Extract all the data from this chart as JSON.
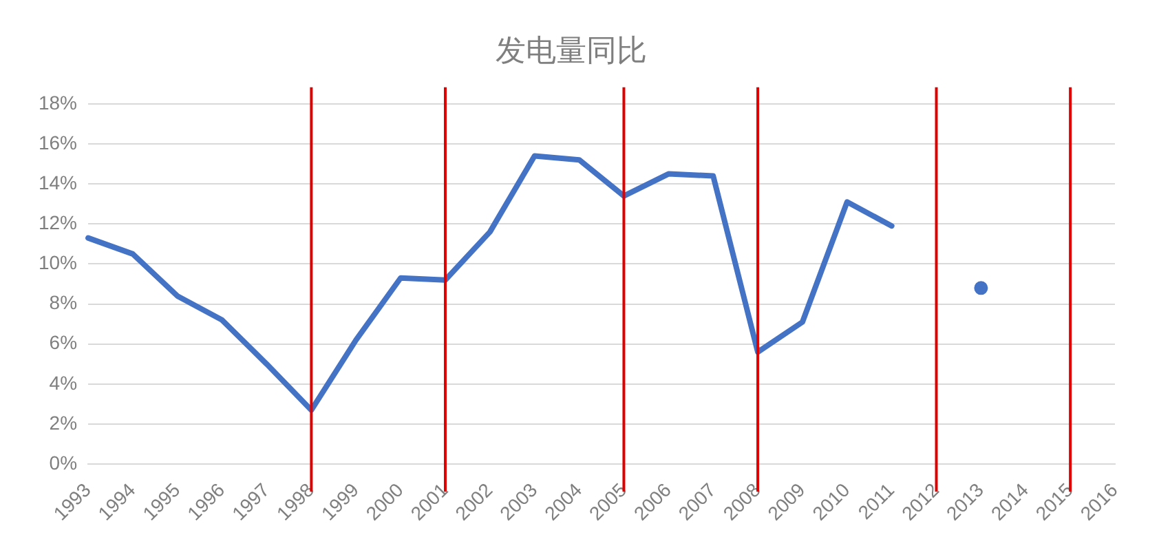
{
  "chart_data": {
    "type": "line",
    "title": "发电量同比",
    "categories": [
      "1993",
      "1994",
      "1995",
      "1996",
      "1997",
      "1998",
      "1999",
      "2000",
      "2001",
      "2002",
      "2003",
      "2004",
      "2005",
      "2006",
      "2007",
      "2008",
      "2009",
      "2010",
      "2011",
      "2012",
      "2013",
      "2014",
      "2015",
      "2016"
    ],
    "series": [
      {
        "color": "#4472c4",
        "values": [
          11.3,
          10.5,
          8.4,
          7.2,
          5.0,
          2.7,
          6.2,
          9.3,
          9.2,
          11.6,
          15.4,
          15.2,
          13.4,
          14.5,
          14.4,
          5.6,
          7.1,
          13.1,
          11.9,
          null,
          8.8,
          null,
          null,
          null
        ]
      }
    ],
    "ylim": [
      0,
      18
    ],
    "yticks": [
      {
        "value": 0,
        "label": "0%"
      },
      {
        "value": 2,
        "label": "2%"
      },
      {
        "value": 4,
        "label": "4%"
      },
      {
        "value": 6,
        "label": "6%"
      },
      {
        "value": 8,
        "label": "8%"
      },
      {
        "value": 10,
        "label": "10%"
      },
      {
        "value": 12,
        "label": "12%"
      },
      {
        "value": 14,
        "label": "14%"
      },
      {
        "value": 16,
        "label": "16%"
      },
      {
        "value": 18,
        "label": "18%"
      }
    ],
    "ref_lines": [
      {
        "axis": "x",
        "value": "1998",
        "color": "#e00000"
      },
      {
        "axis": "x",
        "value": "2001",
        "color": "#e00000"
      },
      {
        "axis": "x",
        "value": "2005",
        "color": "#e00000"
      },
      {
        "axis": "x",
        "value": "2008",
        "color": "#e00000"
      },
      {
        "axis": "x",
        "value": "2012",
        "color": "#e00000"
      },
      {
        "axis": "x",
        "value": "2015",
        "color": "#e00000"
      }
    ],
    "grid": "y",
    "legend": false,
    "marker": "none",
    "line_style": "solid"
  }
}
